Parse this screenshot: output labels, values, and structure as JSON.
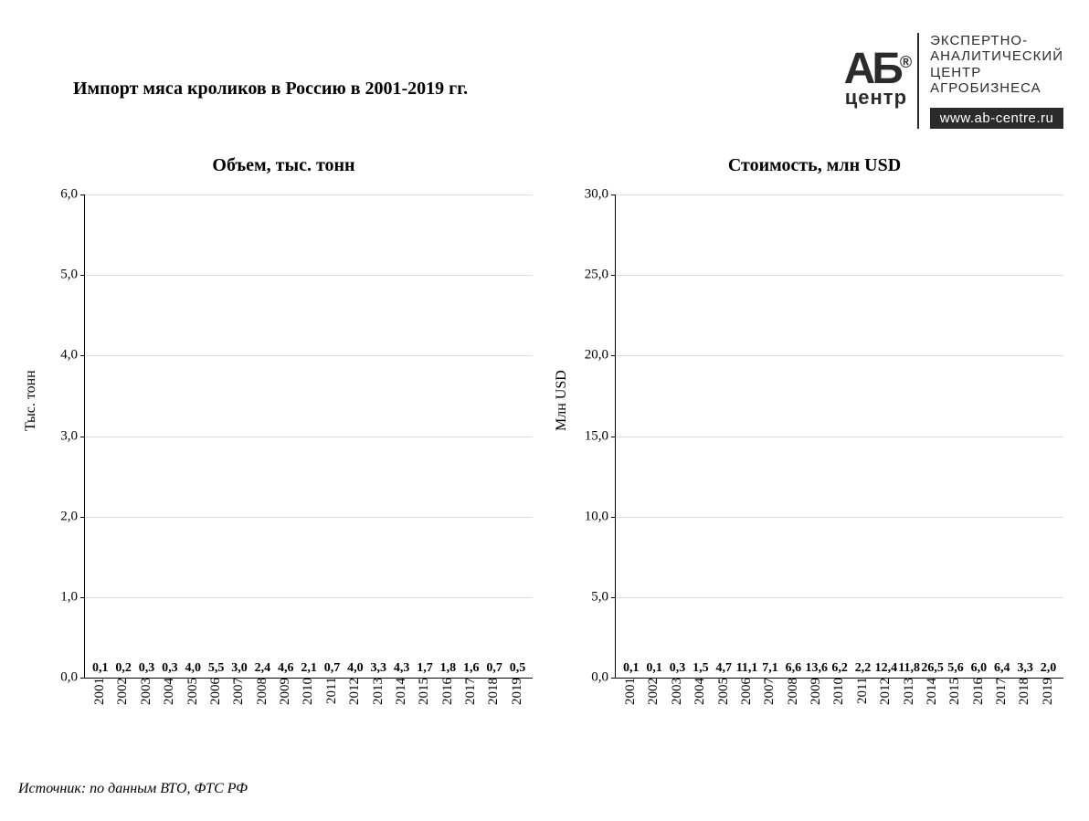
{
  "title": "Импорт мяса кроликов в Россию в 2001-2019 гг.",
  "source": "Источник: по данным ВТО, ФТС РФ",
  "logo": {
    "ab": "АБ",
    "sup": "®",
    "center": "центр",
    "tag1": "ЭКСПЕРТНО-",
    "tag2": "АНАЛИТИЧЕСКИЙ",
    "tag3": "ЦЕНТР",
    "tag4": "АГРОБИЗНЕСА",
    "url": "www.ab-centre.ru"
  },
  "categories": [
    "2001",
    "2002",
    "2003",
    "2004",
    "2005",
    "2006",
    "2007",
    "2008",
    "2009",
    "2010",
    "2011",
    "2012",
    "2013",
    "2014",
    "2015",
    "2016",
    "2017",
    "2018",
    "2019"
  ],
  "chart_left": {
    "type": "bar",
    "title": "Объем, тыс. тонн",
    "ylabel": "Тыс. тонн",
    "ylim": [
      0,
      6
    ],
    "ytick_step": 1.0,
    "decimals": 1,
    "bar_color": "#ed8b22",
    "grid_color": "#dcdcdc",
    "background_color": "#ffffff",
    "bar_width": 0.68,
    "label_fontsize": 14,
    "title_fontsize": 20,
    "values": [
      0.1,
      0.2,
      0.3,
      0.3,
      4.0,
      5.5,
      3.0,
      2.4,
      4.6,
      2.1,
      0.7,
      4.0,
      3.3,
      4.3,
      1.7,
      1.8,
      1.6,
      0.7,
      0.5
    ],
    "value_labels": [
      "0,1",
      "0,2",
      "0,3",
      "0,3",
      "4,0",
      "5,5",
      "3,0",
      "2,4",
      "4,6",
      "2,1",
      "0,7",
      "4,0",
      "3,3",
      "4,3",
      "1,7",
      "1,8",
      "1,6",
      "0,7",
      "0,5"
    ]
  },
  "chart_right": {
    "type": "bar",
    "title": "Стоимость, млн USD",
    "ylabel": "Млн USD",
    "ylim": [
      0,
      30
    ],
    "ytick_step": 5.0,
    "decimals": 1,
    "bar_color": "#8fc74a",
    "grid_color": "#dcdcdc",
    "background_color": "#ffffff",
    "bar_width": 0.68,
    "label_fontsize": 14,
    "title_fontsize": 20,
    "values": [
      0.1,
      0.1,
      0.3,
      1.5,
      4.7,
      11.1,
      7.1,
      6.6,
      13.6,
      6.2,
      2.2,
      12.4,
      11.8,
      26.5,
      5.6,
      6.0,
      6.4,
      3.3,
      2.0
    ],
    "value_labels": [
      "0,1",
      "0,1",
      "0,3",
      "1,5",
      "4,7",
      "11,1",
      "7,1",
      "6,6",
      "13,6",
      "6,2",
      "2,2",
      "12,4",
      "11,8",
      "26,5",
      "5,6",
      "6,0",
      "6,4",
      "3,3",
      "2,0"
    ]
  }
}
